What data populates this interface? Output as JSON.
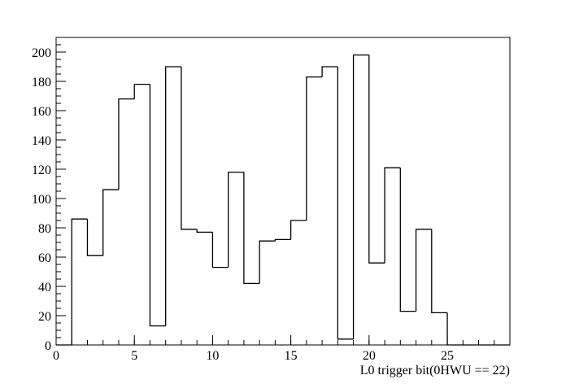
{
  "chart_data": {
    "type": "histogram",
    "x_label": "L0 trigger bit(0HWU == 22)",
    "bins": [
      0,
      1,
      2,
      3,
      4,
      5,
      6,
      7,
      8,
      9,
      10,
      11,
      12,
      13,
      14,
      15,
      16,
      17,
      18,
      19,
      20,
      21,
      22,
      23,
      24,
      25,
      26,
      27,
      28,
      29
    ],
    "values": [
      0,
      86,
      61,
      106,
      168,
      178,
      13,
      190,
      79,
      77,
      53,
      118,
      42,
      71,
      72,
      85,
      183,
      190,
      4,
      198,
      56,
      121,
      23,
      79,
      22,
      0,
      0,
      0,
      0
    ],
    "color": "#000000",
    "xlim": [
      0,
      29
    ],
    "ylim": [
      0,
      210
    ],
    "xticks": [
      0,
      5,
      10,
      15,
      20,
      25
    ],
    "yticks": [
      0,
      20,
      40,
      60,
      80,
      100,
      120,
      140,
      160,
      180,
      200
    ]
  }
}
